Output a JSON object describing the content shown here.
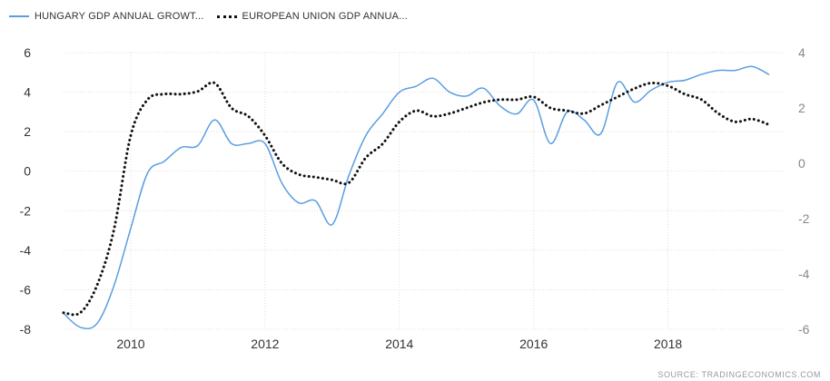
{
  "chart_data": {
    "type": "line",
    "legend": [
      {
        "name": "HUNGARY GDP ANNUAL GROWT...",
        "color": "#5a9ee0",
        "style": "solid"
      },
      {
        "name": "EUROPEAN UNION GDP ANNUA...",
        "color": "#111111",
        "style": "dotted"
      }
    ],
    "xlim": [
      2009.0,
      2019.75
    ],
    "x_ticks": [
      2010,
      2012,
      2014,
      2016,
      2018
    ],
    "y_left": {
      "lim": [
        -8,
        6
      ],
      "ticks": [
        -8,
        -6,
        -4,
        -2,
        0,
        2,
        4,
        6
      ]
    },
    "y_right": {
      "lim": [
        -6,
        4
      ],
      "ticks": [
        -6,
        -4,
        -2,
        0,
        2,
        4
      ]
    },
    "grid": true,
    "legend_position": "top-left",
    "series": [
      {
        "name": "HUNGARY GDP ANNUAL GROWT...",
        "axis": "left",
        "color": "#5a9ee0",
        "style": "solid",
        "points": [
          [
            2009.0,
            -7.2
          ],
          [
            2009.25,
            -7.9
          ],
          [
            2009.5,
            -7.7
          ],
          [
            2009.75,
            -5.8
          ],
          [
            2010.0,
            -2.9
          ],
          [
            2010.25,
            -0.1
          ],
          [
            2010.5,
            0.5
          ],
          [
            2010.75,
            1.2
          ],
          [
            2011.0,
            1.3
          ],
          [
            2011.25,
            2.6
          ],
          [
            2011.5,
            1.4
          ],
          [
            2011.75,
            1.4
          ],
          [
            2012.0,
            1.4
          ],
          [
            2012.25,
            -0.6
          ],
          [
            2012.5,
            -1.6
          ],
          [
            2012.75,
            -1.5
          ],
          [
            2013.0,
            -2.7
          ],
          [
            2013.25,
            -0.2
          ],
          [
            2013.5,
            1.8
          ],
          [
            2013.75,
            2.9
          ],
          [
            2014.0,
            4.0
          ],
          [
            2014.25,
            4.3
          ],
          [
            2014.5,
            4.7
          ],
          [
            2014.75,
            4.0
          ],
          [
            2015.0,
            3.8
          ],
          [
            2015.25,
            4.2
          ],
          [
            2015.5,
            3.3
          ],
          [
            2015.75,
            2.9
          ],
          [
            2016.0,
            3.6
          ],
          [
            2016.25,
            1.4
          ],
          [
            2016.5,
            3.0
          ],
          [
            2016.75,
            2.6
          ],
          [
            2017.0,
            1.9
          ],
          [
            2017.25,
            4.5
          ],
          [
            2017.5,
            3.5
          ],
          [
            2017.75,
            4.1
          ],
          [
            2018.0,
            4.5
          ],
          [
            2018.25,
            4.6
          ],
          [
            2018.5,
            4.9
          ],
          [
            2018.75,
            5.1
          ],
          [
            2019.0,
            5.1
          ],
          [
            2019.25,
            5.3
          ],
          [
            2019.5,
            4.9
          ]
        ]
      },
      {
        "name": "EUROPEAN UNION GDP ANNUA...",
        "axis": "right",
        "color": "#111111",
        "style": "dotted",
        "points": [
          [
            2009.0,
            -5.4
          ],
          [
            2009.25,
            -5.4
          ],
          [
            2009.5,
            -4.4
          ],
          [
            2009.75,
            -2.4
          ],
          [
            2010.0,
            1.0
          ],
          [
            2010.25,
            2.3
          ],
          [
            2010.5,
            2.5
          ],
          [
            2010.75,
            2.5
          ],
          [
            2011.0,
            2.6
          ],
          [
            2011.25,
            2.9
          ],
          [
            2011.5,
            2.0
          ],
          [
            2011.75,
            1.7
          ],
          [
            2012.0,
            1.0
          ],
          [
            2012.25,
            0.0
          ],
          [
            2012.5,
            -0.4
          ],
          [
            2012.75,
            -0.5
          ],
          [
            2013.0,
            -0.6
          ],
          [
            2013.25,
            -0.7
          ],
          [
            2013.5,
            0.2
          ],
          [
            2013.75,
            0.7
          ],
          [
            2014.0,
            1.5
          ],
          [
            2014.25,
            1.9
          ],
          [
            2014.5,
            1.7
          ],
          [
            2014.75,
            1.8
          ],
          [
            2015.0,
            2.0
          ],
          [
            2015.25,
            2.2
          ],
          [
            2015.5,
            2.3
          ],
          [
            2015.75,
            2.3
          ],
          [
            2016.0,
            2.4
          ],
          [
            2016.25,
            2.0
          ],
          [
            2016.5,
            1.9
          ],
          [
            2016.75,
            1.8
          ],
          [
            2017.0,
            2.1
          ],
          [
            2017.25,
            2.4
          ],
          [
            2017.5,
            2.7
          ],
          [
            2017.75,
            2.9
          ],
          [
            2018.0,
            2.8
          ],
          [
            2018.25,
            2.5
          ],
          [
            2018.5,
            2.3
          ],
          [
            2018.75,
            1.8
          ],
          [
            2019.0,
            1.5
          ],
          [
            2019.25,
            1.6
          ],
          [
            2019.5,
            1.4
          ]
        ]
      }
    ]
  },
  "source_text": "SOURCE:  TRADINGECONOMICS.COM"
}
